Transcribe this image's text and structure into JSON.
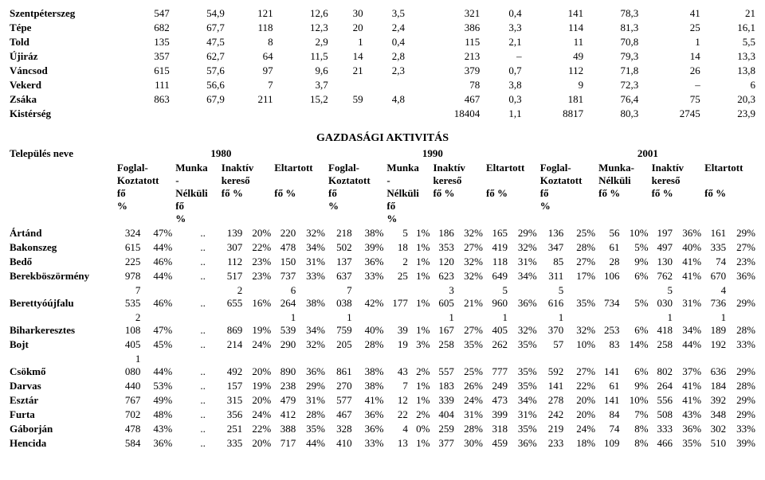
{
  "upper_table": {
    "rows": [
      {
        "name": "Szentpéterszeg",
        "c": [
          547,
          "54,9",
          121,
          "12,6",
          30,
          "3,5",
          321,
          "0,4",
          141,
          "78,3",
          41,
          21
        ]
      },
      {
        "name": "Tépe",
        "c": [
          682,
          "67,7",
          118,
          "12,3",
          20,
          "2,4",
          386,
          "3,3",
          114,
          "81,3",
          25,
          "16,1"
        ]
      },
      {
        "name": "Told",
        "c": [
          135,
          "47,5",
          8,
          "2,9",
          1,
          "0,4",
          115,
          "2,1",
          11,
          "70,8",
          1,
          "5,5"
        ]
      },
      {
        "name": "Újiráz",
        "c": [
          357,
          "62,7",
          64,
          "11,5",
          14,
          "2,8",
          213,
          "–",
          49,
          "79,3",
          14,
          "13,3"
        ]
      },
      {
        "name": "Váncsod",
        "c": [
          615,
          "57,6",
          97,
          "9,6",
          21,
          "2,3",
          379,
          "0,7",
          112,
          "71,8",
          26,
          "13,8"
        ]
      },
      {
        "name": "Vekerd",
        "c": [
          111,
          "56,6",
          7,
          "3,7",
          "",
          "",
          78,
          "3,8",
          9,
          "72,3",
          "–",
          6
        ]
      },
      {
        "name": "Zsáka",
        "c": [
          863,
          "67,9",
          211,
          "15,2",
          59,
          "4,8",
          467,
          "0,3",
          181,
          "76,4",
          75,
          "20,3"
        ]
      },
      {
        "name": "Kistérség",
        "c": [
          "",
          "",
          "",
          "",
          "",
          "",
          18404,
          "1,1",
          8817,
          "80,3",
          2745,
          "23,9"
        ]
      }
    ]
  },
  "section_title": "GAZDASÁGI AKTIVITÁS",
  "lower_table": {
    "header": {
      "settlement": "Település neve",
      "years": [
        "1980",
        "1990",
        "2001"
      ],
      "cols": {
        "foglal": "Foglal-\nKoztatott\nfő\n%",
        "munka": "Munka\n-\nNélküli\nfő\n%",
        "inaktiv": "Inaktív\nkereső\nfő   %",
        "eltartott": "Eltartott",
        "fo_pct": "fő   %",
        "munka_nel": "Munka-\nNélküli\nfő   %"
      }
    },
    "rows": [
      {
        "name": "Ártánd",
        "c": [
          "324",
          "47%",
          "..",
          "",
          "139",
          "20%",
          "220",
          "32%",
          "218",
          "38%",
          "5",
          "1%",
          "186",
          "32%",
          "165",
          "29%",
          "136",
          "25%",
          "56",
          "10%",
          "197",
          "36%",
          "161",
          "29%"
        ]
      },
      {
        "name": "Bakonszeg",
        "c": [
          "615",
          "44%",
          "..",
          "",
          "307",
          "22%",
          "478",
          "34%",
          "502",
          "39%",
          "18",
          "1%",
          "353",
          "27%",
          "419",
          "32%",
          "347",
          "28%",
          "61",
          "5%",
          "497",
          "40%",
          "335",
          "27%"
        ]
      },
      {
        "name": "Bedő",
        "c": [
          "225",
          "46%",
          "..",
          "",
          "112",
          "23%",
          "150",
          "31%",
          "137",
          "36%",
          "2",
          "1%",
          "120",
          "32%",
          "118",
          "31%",
          "85",
          "27%",
          "28",
          "9%",
          "130",
          "41%",
          "74",
          "23%"
        ]
      },
      {
        "name": "Berekböszörmény",
        "c": [
          "978",
          "44%",
          "..",
          "",
          "517",
          "23%",
          "737",
          "33%",
          "637",
          "33%",
          "25",
          "1%",
          "623",
          "32%",
          "649",
          "34%",
          "311",
          "17%",
          "106",
          "6%",
          "762",
          "41%",
          "670",
          "36%"
        ]
      },
      {
        "name": "Berettyóújfalu",
        "c": [
          "7\n535",
          "\n46%",
          "..",
          "",
          "2\n655",
          "\n16%",
          "6\n264",
          "\n38%",
          "7\n038",
          "\n42%",
          "177",
          "1%",
          "3\n605",
          "\n21%",
          "5\n960",
          "\n36%",
          "5\n616",
          "\n35%",
          "734",
          "5%",
          "5\n030",
          "\n31%",
          "4\n736",
          "\n29%"
        ]
      },
      {
        "name": "Biharkeresztes",
        "c": [
          "2\n108",
          "\n47%",
          "..",
          "",
          "869",
          "19%",
          "1\n539",
          "\n34%",
          "1\n759",
          "\n40%",
          "39",
          "1%",
          "1\n167",
          "\n27%",
          "1\n405",
          "\n32%",
          "1\n370",
          "\n32%",
          "253",
          "6%",
          "1\n418",
          "\n34%",
          "1\n189",
          "\n28%"
        ]
      },
      {
        "name": "Bojt",
        "c": [
          "405",
          "45%",
          "..",
          "",
          "214",
          "24%",
          "290",
          "32%",
          "205",
          "28%",
          "19",
          "3%",
          "258",
          "35%",
          "262",
          "35%",
          "57",
          "10%",
          "83",
          "14%",
          "258",
          "44%",
          "192",
          "33%"
        ]
      },
      {
        "name": "Csökmő",
        "c": [
          "1\n080",
          "\n44%",
          "..",
          "",
          "492",
          "20%",
          "890",
          "36%",
          "861",
          "38%",
          "43",
          "2%",
          "557",
          "25%",
          "777",
          "35%",
          "592",
          "27%",
          "141",
          "6%",
          "802",
          "37%",
          "636",
          "29%"
        ]
      },
      {
        "name": "Darvas",
        "c": [
          "440",
          "53%",
          "..",
          "",
          "157",
          "19%",
          "238",
          "29%",
          "270",
          "38%",
          "7",
          "1%",
          "183",
          "26%",
          "249",
          "35%",
          "141",
          "22%",
          "61",
          "9%",
          "264",
          "41%",
          "184",
          "28%"
        ]
      },
      {
        "name": "Esztár",
        "c": [
          "767",
          "49%",
          "..",
          "",
          "315",
          "20%",
          "479",
          "31%",
          "577",
          "41%",
          "12",
          "1%",
          "339",
          "24%",
          "473",
          "34%",
          "278",
          "20%",
          "141",
          "10%",
          "556",
          "41%",
          "392",
          "29%"
        ]
      },
      {
        "name": "Furta",
        "c": [
          "702",
          "48%",
          "..",
          "",
          "356",
          "24%",
          "412",
          "28%",
          "467",
          "36%",
          "22",
          "2%",
          "404",
          "31%",
          "399",
          "31%",
          "242",
          "20%",
          "84",
          "7%",
          "508",
          "43%",
          "348",
          "29%"
        ]
      },
      {
        "name": "Gáborján",
        "c": [
          "478",
          "43%",
          "..",
          "",
          "251",
          "22%",
          "388",
          "35%",
          "328",
          "36%",
          "4",
          "0%",
          "259",
          "28%",
          "318",
          "35%",
          "219",
          "24%",
          "74",
          "8%",
          "333",
          "36%",
          "302",
          "33%"
        ]
      },
      {
        "name": "Hencida",
        "c": [
          "584",
          "36%",
          "..",
          "",
          "335",
          "20%",
          "717",
          "44%",
          "410",
          "33%",
          "13",
          "1%",
          "377",
          "30%",
          "459",
          "36%",
          "233",
          "18%",
          "109",
          "8%",
          "466",
          "35%",
          "510",
          "39%"
        ]
      }
    ]
  }
}
